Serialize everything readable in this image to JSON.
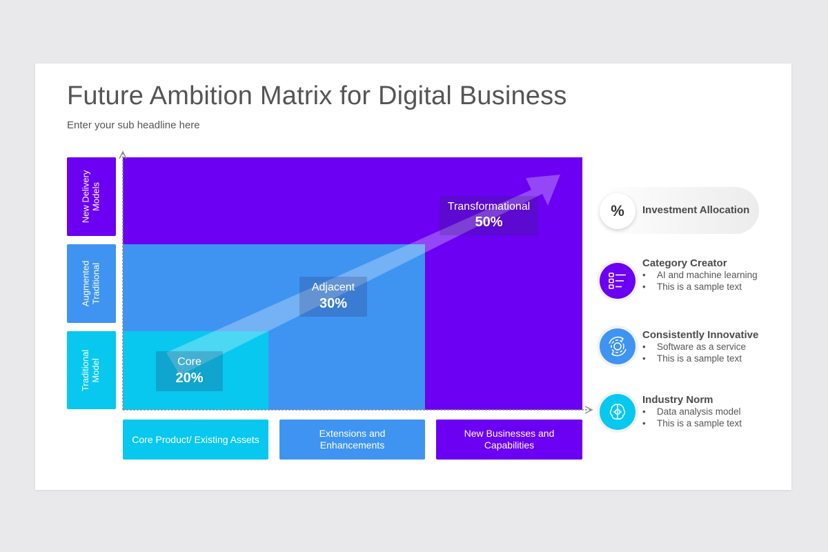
{
  "title": "Future Ambition Matrix for Digital Business",
  "subtitle": "Enter your sub headline here",
  "colors": {
    "cyan": "#08c8ef",
    "blue": "#3f94f2",
    "purple": "#6b00f3",
    "background": "#e9e8ea"
  },
  "y_axis": [
    {
      "label": "New Delivery Models",
      "lines": [
        "New Delivery",
        "Models"
      ]
    },
    {
      "label": "Augmented Traditional",
      "lines": [
        "Augmented",
        "Traditional"
      ]
    },
    {
      "label": "Traditional Model",
      "lines": [
        "Traditional",
        "Model"
      ]
    }
  ],
  "x_axis": [
    {
      "label": "Core Product/ Existing Assets"
    },
    {
      "label": "Extensions and Enhancements"
    },
    {
      "label": "New Businesses and Capabilities"
    }
  ],
  "regions": [
    {
      "name": "Core",
      "percent": "20%",
      "value": 20
    },
    {
      "name": "Adjacent",
      "percent": "30%",
      "value": 30
    },
    {
      "name": "Transformational",
      "percent": "50%",
      "value": 50
    }
  ],
  "legend": {
    "header": {
      "symbol": "%",
      "label": "Investment Allocation"
    },
    "items": [
      {
        "icon": "checklist-icon",
        "title": "Category Creator",
        "bullets": [
          "AI and machine learning",
          "This is a sample text"
        ]
      },
      {
        "icon": "gear-cycle-icon",
        "title": "Consistently Innovative",
        "bullets": [
          "Software as a service",
          "This is a sample text"
        ]
      },
      {
        "icon": "brain-gear-icon",
        "title": "Industry Norm",
        "bullets": [
          "Data analysis model",
          "This is a sample text"
        ]
      }
    ]
  }
}
